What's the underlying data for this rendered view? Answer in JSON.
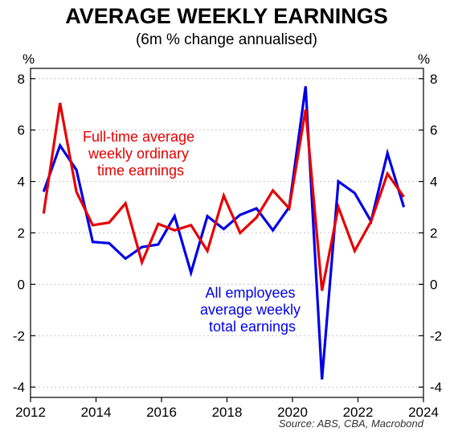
{
  "chart_data": {
    "type": "line",
    "title": "AVERAGE WEEKLY EARNINGS",
    "subtitle": "(6m % change annualised)",
    "ylabel_left": "%",
    "ylabel_right": "%",
    "xlim": [
      2012,
      2024
    ],
    "ylim": [
      -4.4,
      8.4
    ],
    "x_ticks": [
      2012,
      2014,
      2016,
      2018,
      2020,
      2022,
      2024
    ],
    "y_ticks": [
      -4,
      -2,
      0,
      2,
      4,
      6,
      8
    ],
    "y_tick_labels": [
      "-4",
      "-2",
      "0",
      "2",
      "4",
      "6",
      "8"
    ],
    "grid": true,
    "source": "Source: ABS, CBA, Macrobond",
    "series": [
      {
        "name": "All employees average weekly total earnings",
        "label_lines": [
          "All employees",
          "average weekly",
          "total earnings"
        ],
        "color": "#0000e6",
        "x": [
          2012.4,
          2012.9,
          2013.4,
          2013.9,
          2014.4,
          2014.9,
          2015.4,
          2015.9,
          2016.4,
          2016.9,
          2017.4,
          2017.9,
          2018.4,
          2018.9,
          2019.4,
          2019.9,
          2020.4,
          2020.9,
          2021.4,
          2021.9,
          2022.4,
          2022.9,
          2023.4
        ],
        "values": [
          3.6,
          5.4,
          4.45,
          1.65,
          1.6,
          1.0,
          1.45,
          1.55,
          2.65,
          0.45,
          2.65,
          2.15,
          2.7,
          2.95,
          2.1,
          3.0,
          7.7,
          -3.7,
          4.0,
          3.55,
          2.45,
          5.1,
          3.0
        ]
      },
      {
        "name": "Full-time average weekly ordinary time earnings",
        "label_lines": [
          "Full-time average",
          "weekly ordinary",
          "time earnings"
        ],
        "color": "#e60000",
        "x": [
          2012.4,
          2012.9,
          2013.4,
          2013.9,
          2014.4,
          2014.9,
          2015.4,
          2015.9,
          2016.4,
          2016.9,
          2017.4,
          2017.9,
          2018.4,
          2018.9,
          2019.4,
          2019.9,
          2020.4,
          2020.9,
          2021.4,
          2021.9,
          2022.4,
          2022.9,
          2023.4
        ],
        "values": [
          2.75,
          7.05,
          3.6,
          2.3,
          2.4,
          3.15,
          0.85,
          2.35,
          2.1,
          2.3,
          1.3,
          3.45,
          2.0,
          2.6,
          3.65,
          2.95,
          6.8,
          -0.25,
          3.0,
          1.3,
          2.45,
          4.3,
          3.4
        ]
      }
    ]
  }
}
